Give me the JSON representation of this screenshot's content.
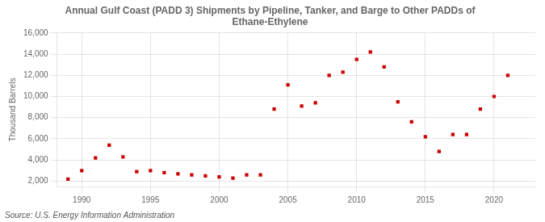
{
  "chart_data": {
    "type": "scatter",
    "title": "Annual Gulf Coast (PADD 3) Shipments by Pipeline, Tanker, and Barge to Other PADDs of\nEthane-Ethylene",
    "ylabel": "Thousand Barrels",
    "annotations": [
      "Source: U.S. Energy Information Administration"
    ],
    "x": [
      1989,
      1990,
      1991,
      1992,
      1993,
      1994,
      1995,
      1996,
      1997,
      1998,
      1999,
      2000,
      2001,
      2002,
      2003,
      2004,
      2005,
      2006,
      2007,
      2008,
      2009,
      2010,
      2011,
      2012,
      2013,
      2014,
      2015,
      2016,
      2017,
      2018,
      2019,
      2020,
      2021
    ],
    "values": [
      2200,
      3000,
      4200,
      5400,
      4300,
      2900,
      3000,
      2800,
      2700,
      2600,
      2500,
      2400,
      2300,
      2600,
      2600,
      8800,
      11100,
      9100,
      9400,
      12000,
      12300,
      13500,
      14200,
      12800,
      9500,
      7600,
      6200,
      4800,
      6400,
      6400,
      8800,
      10000,
      12000
    ],
    "color": "#cc0000",
    "marker": "square",
    "xlim": [
      1988.2,
      2023.0
    ],
    "xticks": [
      1990,
      1995,
      2000,
      2005,
      2010,
      2015,
      2020
    ],
    "ylim": [
      1500,
      16000
    ],
    "yticks": [
      {
        "value": 2000,
        "label": "2,000"
      },
      {
        "value": 4000,
        "label": "4,000"
      },
      {
        "value": 6000,
        "label": "6,000"
      },
      {
        "value": 8000,
        "label": "8,000"
      },
      {
        "value": 10000,
        "label": "10,000"
      },
      {
        "value": 12000,
        "label": "12,000"
      },
      {
        "value": 14000,
        "label": "14,000"
      },
      {
        "value": 16000,
        "label": "16,000"
      }
    ],
    "grid": true
  }
}
